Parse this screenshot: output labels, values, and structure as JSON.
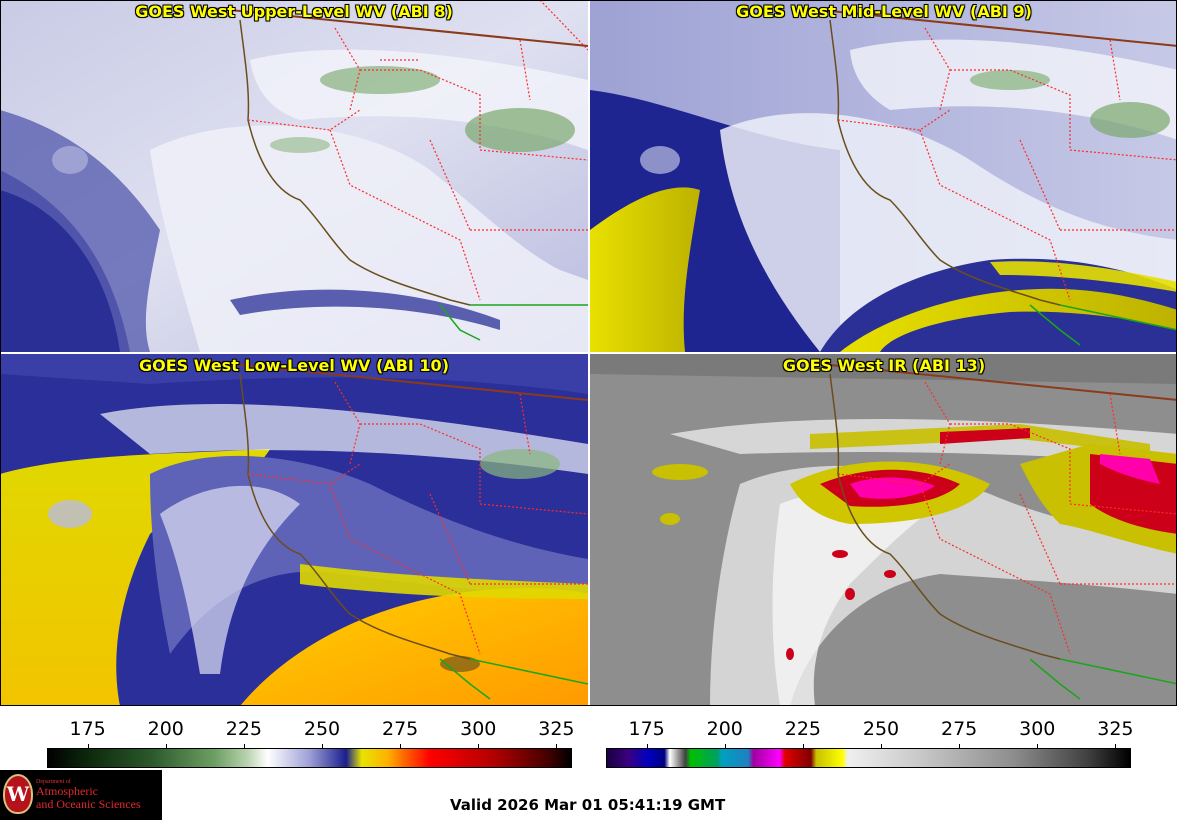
{
  "panels": [
    {
      "title": "GOES West Upper-Level WV (ABI 8)",
      "colormap": "wv"
    },
    {
      "title": "GOES West Mid-Level WV (ABI 9)",
      "colormap": "wv"
    },
    {
      "title": "GOES West Low-Level WV (ABI 10)",
      "colormap": "wv"
    },
    {
      "title": "GOES West IR (ABI 13)",
      "colormap": "ir"
    }
  ],
  "colorbars": {
    "wv": {
      "ticks": [
        "175",
        "200",
        "225",
        "250",
        "275",
        "300",
        "325"
      ],
      "min": 162,
      "max": 330
    },
    "ir": {
      "ticks": [
        "175",
        "200",
        "225",
        "250",
        "275",
        "300",
        "325"
      ],
      "min": 162,
      "max": 330
    }
  },
  "colors": {
    "state_borders": "#ff2a2a",
    "country_borders": "#8b3a1a",
    "coastline": "#6b4e1e",
    "mexico_border": "#1aa61a",
    "title_text": "#ffff00"
  },
  "logo": {
    "seal_letter": "W",
    "department": "Department of",
    "line1": "Atmospheric",
    "line2": "and Oceanic Sciences"
  },
  "footer": {
    "valid_time": "Valid 2026 Mar 01 05:41:19 GMT"
  }
}
